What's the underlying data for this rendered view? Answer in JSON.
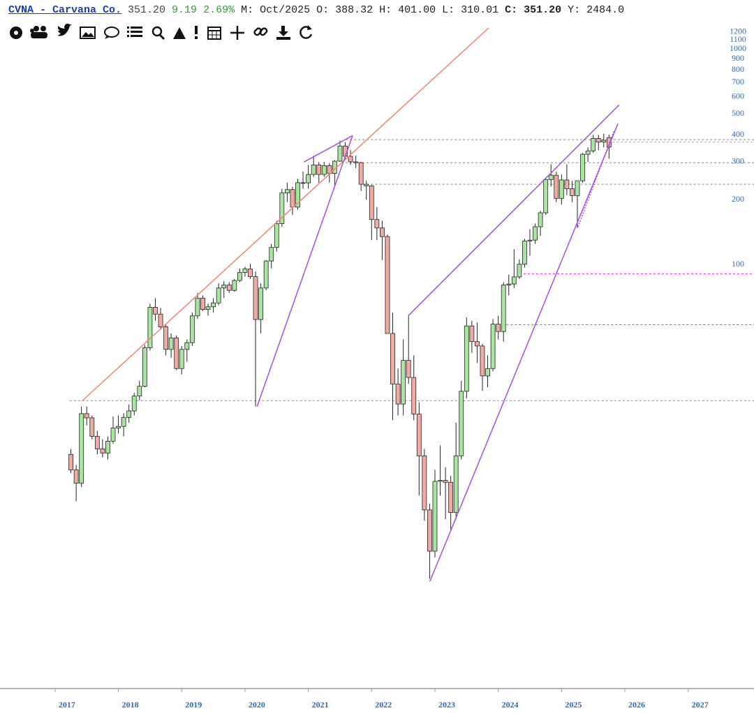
{
  "header": {
    "symbol": "CVNA - Carvana Co.",
    "last": "351.20",
    "change": "9.19",
    "change_pct": "2.69%",
    "period": "M: Oct/2025",
    "open": "O: 388.32",
    "high": "H: 401.00",
    "low": "L: 310.01",
    "close": "C: 351.20",
    "year": "Y: 2484.0"
  },
  "chart_data": {
    "type": "candlestick",
    "x": [
      "2017-04",
      "2017-05",
      "2017-06",
      "2017-07",
      "2017-08",
      "2017-09",
      "2017-10",
      "2017-11",
      "2017-12",
      "2018-01",
      "2018-02",
      "2018-03",
      "2018-04",
      "2018-05",
      "2018-06",
      "2018-07",
      "2018-08",
      "2018-09",
      "2018-10",
      "2018-11",
      "2018-12",
      "2019-01",
      "2019-02",
      "2019-03",
      "2019-04",
      "2019-05",
      "2019-06",
      "2019-07",
      "2019-08",
      "2019-09",
      "2019-10",
      "2019-11",
      "2019-12",
      "2020-01",
      "2020-02",
      "2020-03",
      "2020-04",
      "2020-05",
      "2020-06",
      "2020-07",
      "2020-08",
      "2020-09",
      "2020-10",
      "2020-11",
      "2020-12",
      "2021-01",
      "2021-02",
      "2021-03",
      "2021-04",
      "2021-05",
      "2021-06",
      "2021-07",
      "2021-08",
      "2021-09",
      "2021-10",
      "2021-11",
      "2021-12",
      "2022-01",
      "2022-02",
      "2022-03",
      "2022-04",
      "2022-05",
      "2022-06",
      "2022-07",
      "2022-08",
      "2022-09",
      "2022-10",
      "2022-11",
      "2022-12",
      "2023-01",
      "2023-02",
      "2023-03",
      "2023-04",
      "2023-05",
      "2023-06",
      "2023-07",
      "2023-08",
      "2023-09",
      "2023-10",
      "2023-11",
      "2023-12",
      "2024-01",
      "2024-02",
      "2024-03",
      "2024-04",
      "2024-05",
      "2024-06",
      "2024-07",
      "2024-08",
      "2024-09",
      "2024-10",
      "2024-11",
      "2024-12",
      "2025-01",
      "2025-02",
      "2025-03",
      "2025-04",
      "2025-05",
      "2025-06",
      "2025-07",
      "2025-08",
      "2025-09",
      "2025-10"
    ],
    "open": [
      13.2,
      11.2,
      9.7,
      20.4,
      19.5,
      16.0,
      14.0,
      13.4,
      15.2,
      17.5,
      17.8,
      19.6,
      21.0,
      24.6,
      27.3,
      41.2,
      63.5,
      59.0,
      51.5,
      40.5,
      45.8,
      33.0,
      40.5,
      43.5,
      57.9,
      70.0,
      62.0,
      63.8,
      66.5,
      78.0,
      80.5,
      76.0,
      84.5,
      92.0,
      95.5,
      88.0,
      55.7,
      78.0,
      104.0,
      120.2,
      155.0,
      215.0,
      223.0,
      185.0,
      240.0,
      239.5,
      262.0,
      290.0,
      262.0,
      288.0,
      265.0,
      302.0,
      355.0,
      318.0,
      300.0,
      297.0,
      236.0,
      232.0,
      162.0,
      148.0,
      135.0,
      48.0,
      28.0,
      22.6,
      36.0,
      30.0,
      20.3,
      13.0,
      7.3,
      4.7,
      9.9,
      10.0,
      9.8,
      7.1,
      13.0,
      25.9,
      52.0,
      44.0,
      42.0,
      30.5,
      33.0,
      53.0,
      49.0,
      80.5,
      81.4,
      87.8,
      100.5,
      128.7,
      130.0,
      150.0,
      174.0,
      248.0,
      260.0,
      203.0,
      247.0,
      225.0,
      209.0,
      245.0,
      325.0,
      337.0,
      385.0,
      370.0,
      388.32
    ],
    "high": [
      14.0,
      11.8,
      22.0,
      22.0,
      20.0,
      17.0,
      15.5,
      16.0,
      19.8,
      20.0,
      20.5,
      22.5,
      25.5,
      29.0,
      42.5,
      66.0,
      70.0,
      63.0,
      53.0,
      48.0,
      47.0,
      42.0,
      45.0,
      60.0,
      74.0,
      72.0,
      66.0,
      70.0,
      82.0,
      84.0,
      83.0,
      86.0,
      96.0,
      98.0,
      101.0,
      93.0,
      82.0,
      105.0,
      125.0,
      160.0,
      225.0,
      240.0,
      230.0,
      250.0,
      270.0,
      290.0,
      320.0,
      300.0,
      300.0,
      296.0,
      305.0,
      376.0,
      370.0,
      340.0,
      320.0,
      300.0,
      245.0,
      235.0,
      185.0,
      160.0,
      138.0,
      60.0,
      33.0,
      45.0,
      58.0,
      38.0,
      23.0,
      14.0,
      7.8,
      11.2,
      14.5,
      11.5,
      10.5,
      18.5,
      29.0,
      57.0,
      55.0,
      54.0,
      43.0,
      38.0,
      56.0,
      58.0,
      83.0,
      90.0,
      118.0,
      106.0,
      132.0,
      146.0,
      155.0,
      178.0,
      250.0,
      292.0,
      270.0,
      262.0,
      292.0,
      245.0,
      245.0,
      330.0,
      350.0,
      400.0,
      400.0,
      405.0,
      401.0
    ],
    "low": [
      10.8,
      8.0,
      9.3,
      18.0,
      15.5,
      13.2,
      12.8,
      12.5,
      14.8,
      16.5,
      16.0,
      18.5,
      20.0,
      23.5,
      27.0,
      40.0,
      55.0,
      50.0,
      38.0,
      37.0,
      32.5,
      31.0,
      35.5,
      42.0,
      56.0,
      61.0,
      58.0,
      60.0,
      65.0,
      70.0,
      74.0,
      75.0,
      83.0,
      88.0,
      86.0,
      22.0,
      48.0,
      76.0,
      96.0,
      115.0,
      150.0,
      195.0,
      170.0,
      180.0,
      225.0,
      225.0,
      255.0,
      240.0,
      255.0,
      240.0,
      232.0,
      300.0,
      305.0,
      290.0,
      280.0,
      220.0,
      200.0,
      130.0,
      130.0,
      105.0,
      50.0,
      19.0,
      20.0,
      20.0,
      28.0,
      19.0,
      8.5,
      6.5,
      3.5,
      4.4,
      8.5,
      6.6,
      5.9,
      6.6,
      12.5,
      24.0,
      39.0,
      35.0,
      26.0,
      27.0,
      32.0,
      45.0,
      44.0,
      72.0,
      78.0,
      86.0,
      97.0,
      110.0,
      125.0,
      136.0,
      170.0,
      230.0,
      195.0,
      190.0,
      210.0,
      195.0,
      148.0,
      240.0,
      300.0,
      330.0,
      340.0,
      350.0,
      310.01
    ],
    "close": [
      11.2,
      9.7,
      20.4,
      19.5,
      16.0,
      14.0,
      13.4,
      15.2,
      17.5,
      17.8,
      19.6,
      21.0,
      24.6,
      27.3,
      41.2,
      63.5,
      59.0,
      51.5,
      40.5,
      45.8,
      33.0,
      40.5,
      43.5,
      57.9,
      70.0,
      62.0,
      63.8,
      66.5,
      78.0,
      80.5,
      76.0,
      84.5,
      92.0,
      95.5,
      88.0,
      55.7,
      78.0,
      104.0,
      120.2,
      155.0,
      215.0,
      223.0,
      185.0,
      240.0,
      239.5,
      262.0,
      290.0,
      262.0,
      288.0,
      265.0,
      302.0,
      355.0,
      318.0,
      300.0,
      297.0,
      236.0,
      232.0,
      162.0,
      148.0,
      135.0,
      48.0,
      28.0,
      22.6,
      36.0,
      30.0,
      20.3,
      13.0,
      7.3,
      4.7,
      9.9,
      10.0,
      9.8,
      7.1,
      13.0,
      25.9,
      52.0,
      44.0,
      42.0,
      30.5,
      33.0,
      53.0,
      49.0,
      80.5,
      81.4,
      87.8,
      100.5,
      128.7,
      130.0,
      150.0,
      174.0,
      248.0,
      260.0,
      203.0,
      247.0,
      225.0,
      209.0,
      245.0,
      325.0,
      337.0,
      385.0,
      370.0,
      377.2,
      351.2
    ],
    "up_color": "#a8e6a0",
    "down_color": "#f2aaa4",
    "wick_color": "#222222",
    "log_y": true,
    "ylim": [
      1.1,
      1300
    ],
    "yticks": [
      1200,
      1100,
      1000,
      900,
      800,
      700,
      600,
      500,
      400,
      300,
      200,
      100
    ],
    "xlim": [
      2016.13,
      2028.04
    ],
    "xticks": [
      2017,
      2018,
      2019,
      2020,
      2021,
      2022,
      2023,
      2024,
      2025,
      2026,
      2027
    ],
    "hlines": [
      {
        "value": 380,
        "from": 2021.59,
        "color": "#999999"
      },
      {
        "value": 297,
        "from": 2021.59,
        "color": "#999999"
      },
      {
        "value": 236,
        "from": 2021.86,
        "color": "#999999"
      },
      {
        "value": 23.4,
        "from": 2017.23,
        "color": "#999999"
      },
      {
        "value": 90.7,
        "from": 2024.4,
        "color": "#d040e0"
      },
      {
        "value": 52.7,
        "from": 2024.13,
        "color": "#d040e0"
      },
      {
        "value": 370,
        "from": 2025.67,
        "color": "#f0a070"
      }
    ],
    "trendlines": [
      {
        "x": [
          2017.43,
          2023.85
        ],
        "y": [
          23.4,
          1253
        ],
        "color": "#f08878",
        "dashed": false
      },
      {
        "x": [
          2020.19,
          2021.7
        ],
        "y": [
          22,
          397
        ],
        "color": "#a855e0",
        "dashed": false
      },
      {
        "x": [
          2020.93,
          2021.7
        ],
        "y": [
          299,
          397
        ],
        "color": "#a855e0",
        "dashed": false
      },
      {
        "x": [
          2022.58,
          2025.91
        ],
        "y": [
          58,
          551
        ],
        "color": "#a855e0",
        "dashed": false
      },
      {
        "x": [
          2022.92,
          2025.89
        ],
        "y": [
          3.4,
          450
        ],
        "color": "#a855e0",
        "dashed": false
      },
      {
        "x": [
          2025.26,
          2025.83
        ],
        "y": [
          150,
          418
        ],
        "color": "#a855e0",
        "dashed": true
      }
    ]
  }
}
